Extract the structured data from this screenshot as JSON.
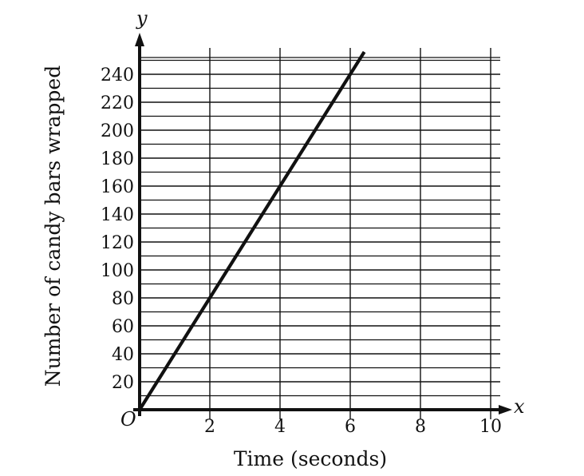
{
  "chart_data": {
    "type": "line",
    "title": "",
    "xlabel": "Time (seconds)",
    "ylabel": "Number of candy bars wrapped",
    "x_axis_variable": "x",
    "y_axis_variable": "y",
    "origin_label": "O",
    "xlim": [
      0,
      10
    ],
    "ylim": [
      0,
      250
    ],
    "x_ticks": [
      2,
      4,
      6,
      8,
      10
    ],
    "y_ticks": [
      20,
      40,
      60,
      80,
      100,
      120,
      140,
      160,
      180,
      200,
      220,
      240
    ],
    "grid": true,
    "series": [
      {
        "x": [
          0,
          2,
          4,
          6,
          6.4
        ],
        "y": [
          0,
          80,
          160,
          240,
          256
        ]
      }
    ],
    "colors": {
      "line": "#111111",
      "grid": "#111111",
      "axis": "#111111"
    }
  }
}
